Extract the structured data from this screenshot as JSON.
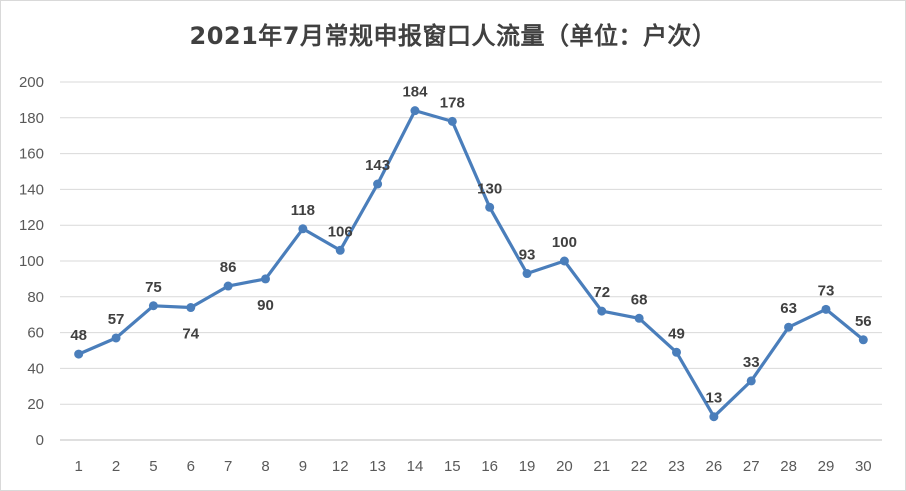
{
  "chart_data": {
    "type": "line",
    "title": "2021年7月常规申报窗口人流量（单位：户次）",
    "xlabel": "",
    "ylabel": "",
    "categories": [
      "1",
      "2",
      "5",
      "6",
      "7",
      "8",
      "9",
      "12",
      "13",
      "14",
      "15",
      "16",
      "19",
      "20",
      "21",
      "22",
      "23",
      "26",
      "27",
      "28",
      "29",
      "30"
    ],
    "series": [
      {
        "values": [
          48,
          57,
          75,
          74,
          86,
          90,
          118,
          106,
          143,
          184,
          178,
          130,
          93,
          100,
          72,
          68,
          49,
          13,
          33,
          63,
          73,
          56
        ],
        "label_positions": [
          "above",
          "above",
          "above",
          "below",
          "above",
          "below",
          "above",
          "above",
          "above",
          "above",
          "above",
          "above",
          "above",
          "above",
          "above",
          "above",
          "above",
          "above",
          "above",
          "above",
          "above",
          "above"
        ]
      }
    ],
    "ylim": [
      0,
      200
    ],
    "yticks": [
      0,
      20,
      40,
      60,
      80,
      100,
      120,
      140,
      160,
      180,
      200
    ],
    "grid": true,
    "legend": "none",
    "colors": {
      "line": "#4a7ebb",
      "grid": "#d9d9d9",
      "axis": "#bfbfbf"
    }
  }
}
